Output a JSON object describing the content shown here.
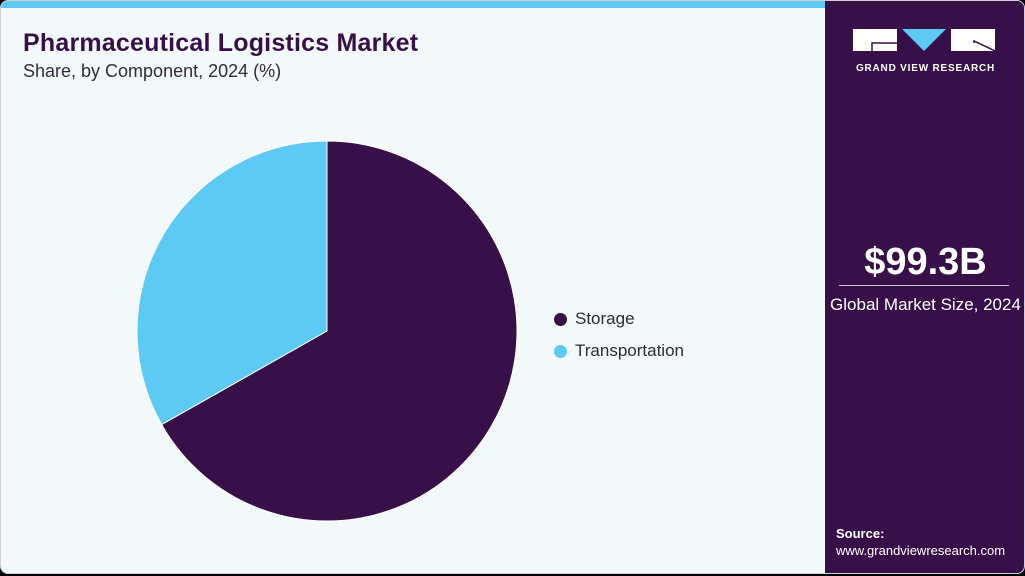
{
  "header": {
    "title": "Pharmaceutical Logistics Market",
    "subtitle": "Share, by Component, 2024 (%)"
  },
  "legend": [
    {
      "label": "Storage",
      "color": "#37104a"
    },
    {
      "label": "Transportation",
      "color": "#5ccaf5"
    }
  ],
  "sidebar": {
    "brand": "GRAND VIEW RESEARCH",
    "market_size": "$99.3B",
    "market_size_label": "Global Market Size, 2024",
    "source_label": "Source:",
    "source_url": "www.grandviewresearch.com"
  },
  "colors": {
    "accent": "#5ccaf5",
    "primary": "#37104a",
    "background": "#f3f8fb"
  },
  "chart_data": {
    "type": "pie",
    "title": "Pharmaceutical Logistics Market",
    "subtitle": "Share, by Component, 2024 (%)",
    "categories": [
      "Storage",
      "Transportation"
    ],
    "values": [
      66.8,
      33.2
    ],
    "colors": [
      "#37104a",
      "#5ccaf5"
    ],
    "legend_position": "right",
    "start_angle": 0,
    "direction": "clockwise"
  }
}
